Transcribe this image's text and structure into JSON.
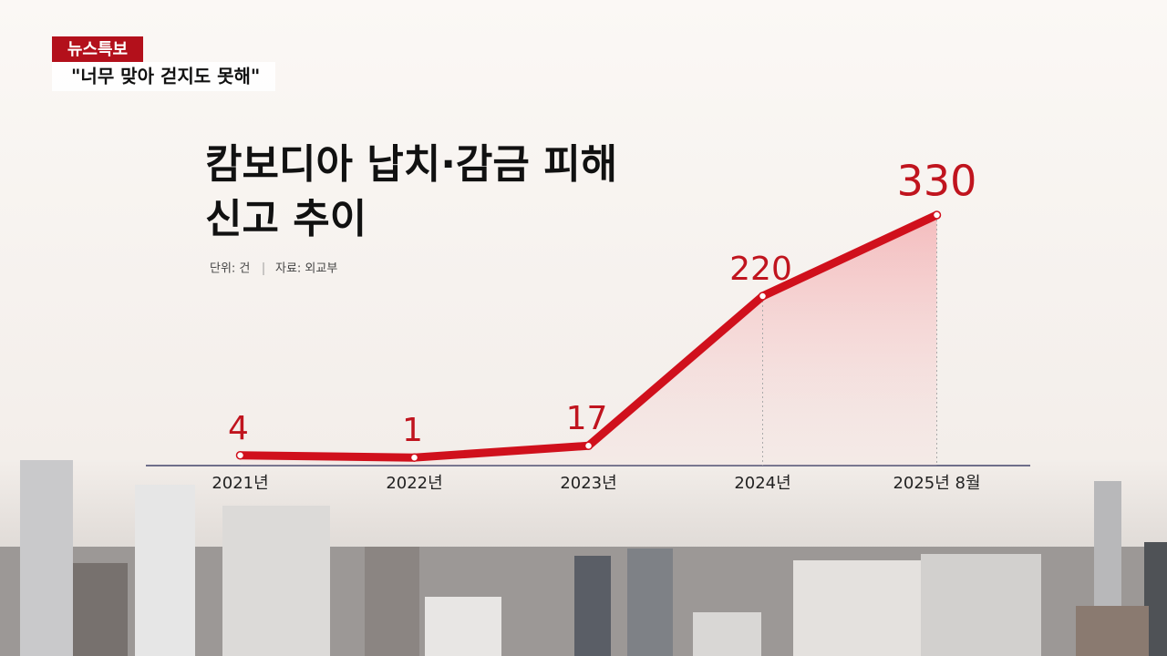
{
  "header": {
    "badge": "뉴스특보",
    "caption": "\"너무 맞아 걷지도 못해\""
  },
  "chart_data": {
    "type": "line",
    "title": [
      "캄보디아 납치·감금 피해",
      "신고 추이"
    ],
    "unit_note": "단위: 건",
    "source": "자료: 외교부",
    "categories": [
      "2021년",
      "2022년",
      "2023년",
      "2024년",
      "2025년 8월"
    ],
    "values": [
      4,
      1,
      17,
      220,
      330
    ],
    "color": "#d0101c"
  }
}
